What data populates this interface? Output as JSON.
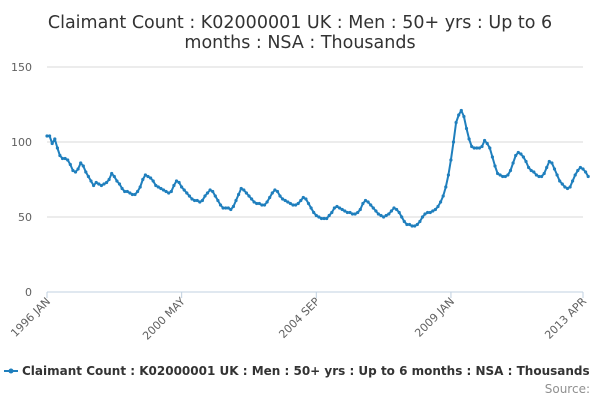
{
  "chart_data": {
    "type": "line",
    "title_lines": [
      "Claimant Count : K02000001 UK : Men : 50+ yrs : Up to 6",
      "months : NSA : Thousands"
    ],
    "y_ticks": [
      "150",
      "100",
      "50",
      "0"
    ],
    "ylim": [
      0,
      150
    ],
    "x_ticks": [
      {
        "label": "1996 JAN",
        "at": "1996-01"
      },
      {
        "label": "2000 MAY",
        "at": "2000-05"
      },
      {
        "label": "2004 SEP",
        "at": "2004-09"
      },
      {
        "label": "2009 JAN",
        "at": "2009-01"
      },
      {
        "label": "2013 APR",
        "at": "2013-04"
      }
    ],
    "xrange": [
      "1996-01",
      "2013-04"
    ],
    "grid": {
      "horizontal": true,
      "vertical": false
    },
    "legend_position": "bottom",
    "series": [
      {
        "name": "Claimant Count : K02000001 UK : Men : 50+ yrs : Up to 6 months : NSA : Thousands",
        "color": "#1f7fbd",
        "start": "1996-01",
        "values": [
          104,
          104,
          99,
          102,
          96,
          91,
          89,
          89,
          88,
          85,
          81,
          80,
          82,
          86,
          84,
          80,
          77,
          74,
          71,
          73,
          72,
          71,
          72,
          73,
          75,
          79,
          77,
          74,
          72,
          69,
          67,
          67,
          66,
          65,
          65,
          67,
          70,
          75,
          78,
          77,
          76,
          74,
          71,
          70,
          69,
          68,
          67,
          66,
          67,
          71,
          74,
          73,
          70,
          68,
          66,
          64,
          62,
          61,
          61,
          60,
          61,
          64,
          66,
          68,
          67,
          64,
          61,
          58,
          56,
          56,
          56,
          55,
          57,
          61,
          65,
          69,
          68,
          66,
          64,
          62,
          60,
          59,
          59,
          58,
          58,
          60,
          63,
          66,
          68,
          67,
          64,
          62,
          61,
          60,
          59,
          58,
          58,
          59,
          61,
          63,
          62,
          59,
          56,
          53,
          51,
          50,
          49,
          49,
          49,
          51,
          53,
          56,
          57,
          56,
          55,
          54,
          53,
          53,
          52,
          52,
          53,
          55,
          59,
          61,
          60,
          58,
          56,
          54,
          52,
          51,
          50,
          51,
          52,
          54,
          56,
          55,
          53,
          50,
          47,
          45,
          45,
          44,
          44,
          45,
          47,
          50,
          52,
          53,
          53,
          54,
          55,
          57,
          60,
          64,
          70,
          78,
          88,
          100,
          113,
          118,
          121,
          117,
          109,
          102,
          97,
          96,
          96,
          96,
          97,
          101,
          99,
          96,
          90,
          84,
          79,
          78,
          77,
          77,
          78,
          81,
          86,
          91,
          93,
          92,
          90,
          87,
          83,
          81,
          80,
          78,
          77,
          77,
          79,
          83,
          87,
          86,
          82,
          78,
          74,
          72,
          70,
          69,
          70,
          74,
          78,
          81,
          83,
          82,
          80,
          77
        ]
      }
    ],
    "legend_label": "Claimant Count : K02000001 UK : Men : 50+ yrs : Up to 6 months : NSA : Thousands",
    "credit": "Source:"
  }
}
